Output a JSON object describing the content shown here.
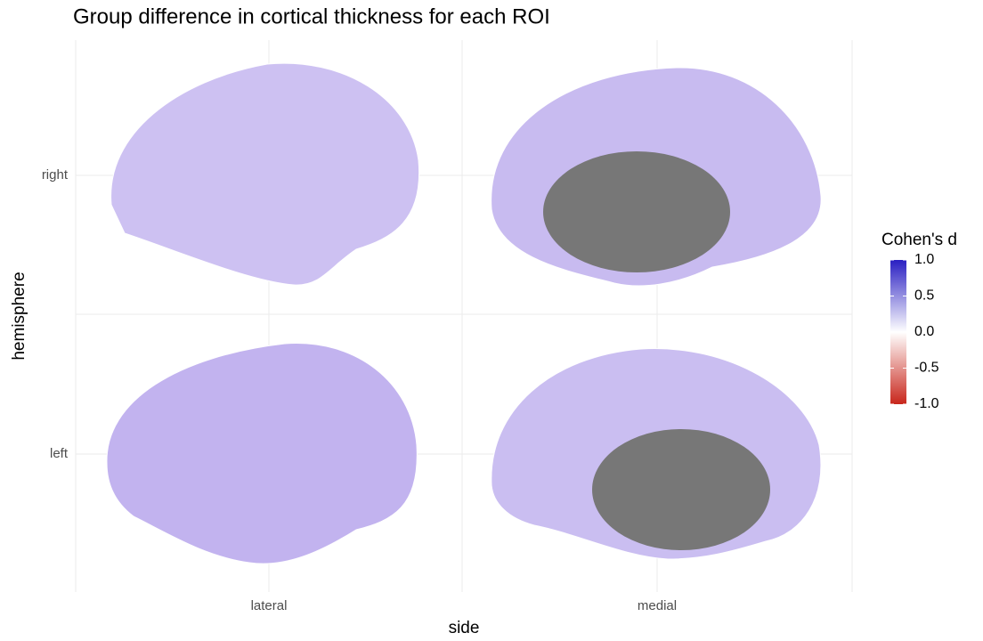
{
  "chart_data": {
    "type": "brain",
    "title": "Group difference in cortical thickness for each ROI",
    "x_label": "side",
    "y_label": "hemisphere",
    "categories": [
      "lateral",
      "medial"
    ],
    "y_categories": [
      "right",
      "left"
    ],
    "legend": {
      "title": "Cohen's d",
      "limits": [
        -1,
        1
      ],
      "ticks": [
        {
          "value": 1,
          "label": "1.0"
        },
        0.5,
        {
          "value": 0,
          "label": "0.0"
        },
        -0.5,
        {
          "value": -1,
          "label": "-1.0"
        }
      ],
      "colors": {
        "low": "#c8261b",
        "mid": "#ffffff",
        "high": "#2a1fc2"
      }
    },
    "grid": true
  }
}
